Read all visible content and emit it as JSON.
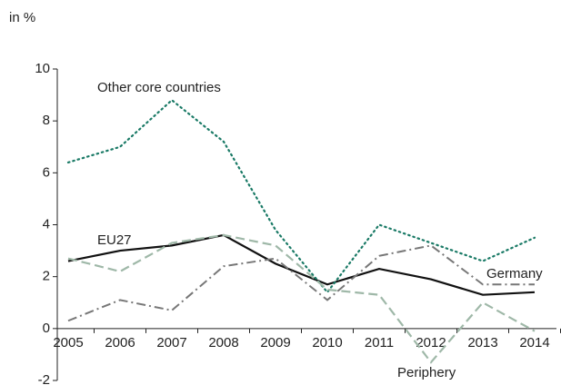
{
  "chart_data": {
    "type": "line",
    "y_unit_label": "in %",
    "categories": [
      "2005",
      "2006",
      "2007",
      "2008",
      "2009",
      "2010",
      "2011",
      "2012",
      "2013",
      "2014"
    ],
    "series": [
      {
        "name": "EU27",
        "color": "#111111",
        "style": "solid",
        "values": [
          2.6,
          3.0,
          3.2,
          3.6,
          2.5,
          1.7,
          2.3,
          1.9,
          1.3,
          1.4
        ]
      },
      {
        "name": "Germany",
        "color": "#777777",
        "style": "dashdot",
        "values": [
          0.3,
          1.1,
          0.7,
          2.4,
          2.7,
          1.1,
          2.8,
          3.2,
          1.7,
          1.7
        ]
      },
      {
        "name": "Other core countries",
        "color": "#1a7a66",
        "style": "dotted",
        "values": [
          6.4,
          7.0,
          8.8,
          7.2,
          3.8,
          1.4,
          4.0,
          3.3,
          2.6,
          3.5
        ]
      },
      {
        "name": "Periphery",
        "color": "#9fb8a8",
        "style": "dashed",
        "values": [
          2.7,
          2.2,
          3.3,
          3.6,
          3.2,
          1.5,
          1.3,
          -1.3,
          1.0,
          -0.1
        ]
      }
    ],
    "ylim": [
      -2,
      10
    ],
    "yticks": [
      -2,
      0,
      2,
      4,
      6,
      8,
      10
    ]
  }
}
